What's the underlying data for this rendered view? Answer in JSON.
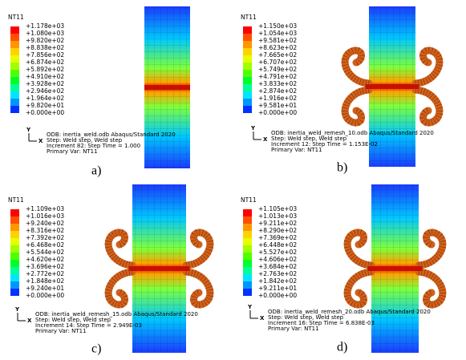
{
  "panels": [
    {
      "label": "a)",
      "legend_title": "NT11",
      "legend": [
        "+1.178e+03",
        "+1.080e+03",
        "+9.820e+02",
        "+8.838e+02",
        "+7.856e+02",
        "+6.874e+02",
        "+5.892e+02",
        "+4.910e+02",
        "+3.928e+02",
        "+2.946e+02",
        "+1.964e+02",
        "+9.820e+01",
        "+0.000e+00"
      ],
      "triad_y": "Y",
      "triad_x": "X",
      "info": [
        "ODB: inertia_weld.odb    Abaqus/Standard 2020",
        "Step: Weld step, Weld step",
        "Increment     82: Step Time =    1.000",
        "Primary Var: NT11"
      ]
    },
    {
      "label": "b)",
      "legend_title": "NT11",
      "legend": [
        "+1.150e+03",
        "+1.054e+03",
        "+9.581e+02",
        "+8.623e+02",
        "+7.665e+02",
        "+6.707e+02",
        "+5.749e+02",
        "+4.791e+02",
        "+3.833e+02",
        "+2.874e+02",
        "+1.916e+02",
        "+9.581e+01",
        "+0.000e+00"
      ],
      "triad_y": "Y",
      "triad_x": "X",
      "info": [
        "ODB: inertia_weld_remesh_10.odb    Abaqus/Standard 2020",
        "Step: Weld step, Weld step",
        "Increment     12: Step Time =    1.153E-02",
        "Primary Var: NT11"
      ]
    },
    {
      "label": "c)",
      "legend_title": "NT11",
      "legend": [
        "+1.109e+03",
        "+1.016e+03",
        "+9.240e+02",
        "+8.316e+02",
        "+7.392e+02",
        "+6.468e+02",
        "+5.544e+02",
        "+4.620e+02",
        "+3.696e+02",
        "+2.772e+02",
        "+1.848e+02",
        "+9.240e+01",
        "+0.000e+00"
      ],
      "triad_y": "Y",
      "triad_x": "X",
      "info": [
        "ODB: inertia_weld_remesh_15.odb    Abaqus/Standard 2020",
        "Step: Weld step, Weld step",
        "Increment     14: Step Time =    2.949E-03",
        "Primary Var: NT11"
      ]
    },
    {
      "label": "d)",
      "legend_title": "NT11",
      "legend": [
        "+1.105e+03",
        "+1.013e+03",
        "+9.211e+02",
        "+8.290e+02",
        "+7.369e+02",
        "+6.448e+02",
        "+5.527e+02",
        "+4.606e+02",
        "+3.684e+02",
        "+2.763e+02",
        "+1.842e+02",
        "+9.211e+01",
        "+0.000e+00"
      ],
      "triad_y": "Y",
      "triad_x": "X",
      "info": [
        "ODB: inertia_weld_remesh_20.odb    Abaqus/Standard 2020",
        "Step: Weld step, Weld step",
        "Increment     16: Step Time =    6.838E-03",
        "Primary Var: NT11"
      ]
    }
  ]
}
